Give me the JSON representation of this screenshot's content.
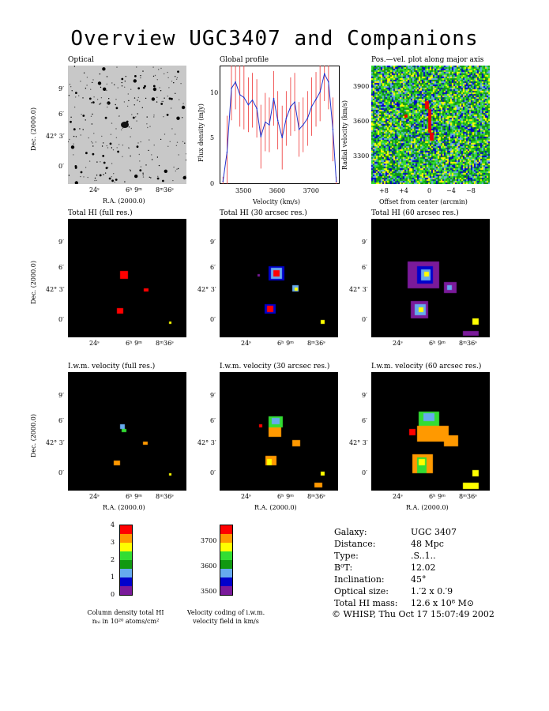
{
  "title": "Overview UGC3407 and Companions",
  "panels": {
    "optical": "Optical",
    "profile": "Global profile",
    "pv": "Pos.—vel. plot along major axis",
    "hi_full": "Total HI (full res.)",
    "hi_30": "Total HI (30 arcsec res.)",
    "hi_60": "Total HI (60 arcsec res.)",
    "vel_full": "I.w.m. velocity (full res.)",
    "vel_30": "I.w.m. velocity (30 arcsec res.)",
    "vel_60": "I.w.m. velocity (60 arcsec res.)"
  },
  "axes": {
    "dec_label": "Dec. (2000.0)",
    "ra_label": "R.A. (2000.0)",
    "dec_ticks": [
      "9′",
      "6′",
      "42° 3′",
      "0′"
    ],
    "ra_ticks": [
      "24ˢ",
      "6ʰ 9ᵐ",
      "8ᵐ36ˢ"
    ],
    "profile_xlabel": "Velocity (km/s)",
    "profile_ylabel": "Flux density (mJy)",
    "profile_xticks": [
      "3500",
      "3600",
      "3700"
    ],
    "profile_yticks": [
      "0",
      "5",
      "10"
    ],
    "pv_xlabel": "Offset from center (arcmin)",
    "pv_ylabel": "Radial velocity (km/s)",
    "pv_xticks": [
      "+8",
      "+4",
      "0",
      "−4",
      "−8"
    ],
    "pv_yticks": [
      "3900",
      "3600",
      "3300"
    ]
  },
  "chart_data": {
    "type": "line",
    "title": "Global profile",
    "xlabel": "Velocity (km/s)",
    "ylabel": "Flux density (mJy)",
    "xlim": [
      3430,
      3785
    ],
    "ylim": [
      0,
      13
    ],
    "x": [
      3440,
      3452,
      3465,
      3477,
      3490,
      3502,
      3515,
      3527,
      3540,
      3552,
      3565,
      3577,
      3590,
      3602,
      3615,
      3627,
      3640,
      3652,
      3665,
      3677,
      3690,
      3702,
      3715,
      3727,
      3740,
      3752,
      3765,
      3775
    ],
    "values": [
      0.3,
      3.5,
      10.5,
      11.2,
      9.8,
      9.5,
      8.7,
      9.2,
      8.3,
      5.2,
      6.8,
      6.5,
      9.4,
      7.0,
      5.1,
      7.2,
      8.5,
      9.0,
      6.0,
      6.5,
      7.2,
      8.5,
      9.3,
      10.1,
      12.1,
      11.2,
      6.0,
      0.3
    ],
    "errors": [
      0.5,
      4.0,
      3.5,
      3.0,
      3.5,
      3.5,
      3.0,
      3.0,
      3.2,
      3.5,
      3.2,
      3.0,
      3.0,
      3.2,
      3.5,
      3.0,
      3.2,
      3.2,
      3.0,
      3.0,
      3.0,
      3.2,
      3.0,
      3.2,
      3.0,
      3.0,
      3.5,
      0.5
    ]
  },
  "colorbar_hi": {
    "ticks": [
      "4",
      "3",
      "2",
      "1",
      "0"
    ],
    "label_line1": "Column density total HI",
    "label_line2": "nₕᵢ in 10²⁰ atoms/cm²",
    "colors": [
      "#ff0000",
      "#ff9900",
      "#ffff00",
      "#33dd33",
      "#119911",
      "#66aaee",
      "#0000cc",
      "#7a1a9a"
    ]
  },
  "colorbar_vel": {
    "ticks": [
      "3700",
      "3600",
      "3500"
    ],
    "label_line1": "Velocity coding of i.w.m.",
    "label_line2": "velocity field in km/s",
    "colors": [
      "#ff0000",
      "#ff9900",
      "#ffff00",
      "#33dd33",
      "#119911",
      "#66aaee",
      "#0000cc",
      "#7a1a9a"
    ]
  },
  "info": [
    {
      "key": "Galaxy:",
      "value": "UGC 3407"
    },
    {
      "key": "Distance:",
      "value": "48 Mpc"
    },
    {
      "key": "Type:",
      "value": ".S..1.."
    },
    {
      "key": "B⁰T:",
      "value": "12.02"
    },
    {
      "key": "Inclination:",
      "value": "45°"
    },
    {
      "key": "Optical size:",
      "value": "1.′2 x 0.′9"
    },
    {
      "key": "Total HI mass:",
      "value": "12.6 x 10⁸ M⊙"
    }
  ],
  "footer": "© WHISP, Thu Oct 17 15:07:49 2002"
}
